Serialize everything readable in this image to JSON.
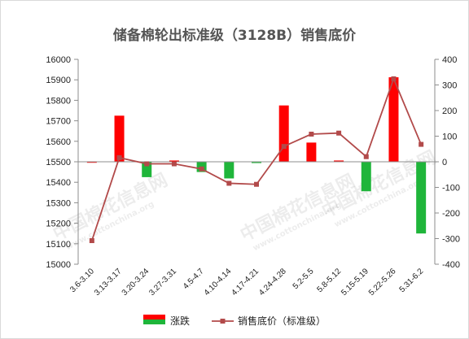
{
  "chart_data": {
    "type": "bar+line",
    "title": "储备棉轮出标准级（3128B）销售底价",
    "categories": [
      "3.6-3.10",
      "3.13-3.17",
      "3.20-3.24",
      "3.27-3.31",
      "4.5-4.7",
      "4.10-4.14",
      "4.17-4.21",
      "4.24-4.28",
      "5.2-5.5",
      "5.8-5.12",
      "5.15-5.19",
      "5.22-5.26",
      "5.31-6.2"
    ],
    "series": [
      {
        "name": "涨跌",
        "type": "bar",
        "axis": "right",
        "values": [
          0,
          180,
          -60,
          5,
          -40,
          -65,
          -5,
          220,
          75,
          5,
          -115,
          330,
          -280
        ],
        "color_up": "#ff0000",
        "color_down": "#1fb53a"
      },
      {
        "name": "销售底价（标准级）",
        "type": "line",
        "axis": "left",
        "values": [
          15115,
          15520,
          15490,
          15490,
          15465,
          15395,
          15390,
          15575,
          15635,
          15640,
          15525,
          15905,
          15585
        ],
        "color": "#b24a4a"
      }
    ],
    "y_left": {
      "min": 15000,
      "max": 16000,
      "step": 100
    },
    "y_right": {
      "min": -400,
      "max": 400,
      "step": 100
    },
    "grid": false,
    "legend_position": "bottom"
  },
  "watermark": {
    "text": "中国棉花信息网",
    "subtext": "www.cottonchina.org"
  }
}
